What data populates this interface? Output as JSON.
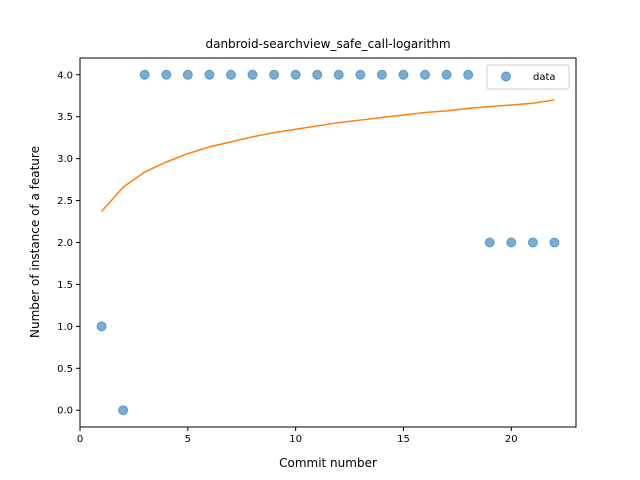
{
  "chart_data": {
    "type": "scatter",
    "title": "danbroid-searchview_safe_call-logarithm",
    "xlabel": "Commit number",
    "ylabel": "Number of instance of a feature",
    "xlim": [
      0,
      23
    ],
    "ylim": [
      -0.2,
      4.2
    ],
    "xticks": [
      0,
      5,
      10,
      15,
      20
    ],
    "yticks": [
      0.0,
      0.5,
      1.0,
      1.5,
      2.0,
      2.5,
      3.0,
      3.5,
      4.0
    ],
    "xtick_labels": [
      "0",
      "5",
      "10",
      "15",
      "20"
    ],
    "ytick_labels": [
      "0.0",
      "0.5",
      "1.0",
      "1.5",
      "2.0",
      "2.5",
      "3.0",
      "3.5",
      "4.0"
    ],
    "grid": false,
    "legend": {
      "position": "top-right",
      "entries": [
        "data"
      ]
    },
    "series": [
      {
        "name": "data",
        "kind": "scatter",
        "color": "#1f77b4",
        "x": [
          1,
          2,
          3,
          4,
          5,
          6,
          7,
          8,
          9,
          10,
          11,
          12,
          13,
          14,
          15,
          16,
          17,
          18,
          19,
          20,
          21,
          22
        ],
        "y": [
          1,
          0,
          4,
          4,
          4,
          4,
          4,
          4,
          4,
          4,
          4,
          4,
          4,
          4,
          4,
          4,
          4,
          4,
          2,
          2,
          2,
          2
        ]
      },
      {
        "kind": "line",
        "color": "#ff7f0e",
        "x": [
          1,
          2,
          3,
          4,
          5,
          6,
          7,
          8,
          9,
          10,
          11,
          12,
          13,
          14,
          15,
          16,
          17,
          18,
          19,
          20,
          21,
          22
        ],
        "y": [
          2.37,
          2.66,
          2.84,
          2.96,
          3.06,
          3.14,
          3.2,
          3.26,
          3.31,
          3.35,
          3.39,
          3.43,
          3.46,
          3.49,
          3.52,
          3.55,
          3.57,
          3.6,
          3.62,
          3.64,
          3.66,
          3.7
        ]
      }
    ]
  }
}
